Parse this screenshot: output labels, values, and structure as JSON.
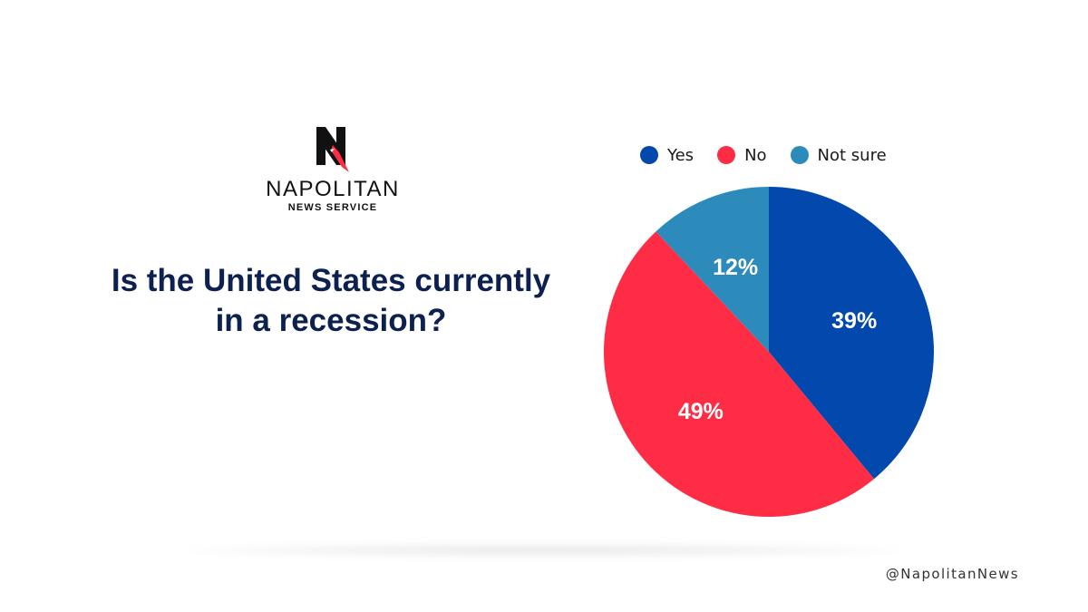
{
  "brand": {
    "name": "NAPOLITAN",
    "subtitle": "NEWS SERVICE",
    "logo_icon": "napolitan-n-logo-icon",
    "handle": "@NapolitanNews"
  },
  "colors": {
    "title": "#0d2150",
    "yes": "#0349ad",
    "no": "#fe2d45",
    "not_sure": "#2d8bbc"
  },
  "chart_data": {
    "type": "pie",
    "title": "Is the United States currently in a recession?",
    "legend_position": "top",
    "slices": [
      {
        "label": "Yes",
        "value": 39,
        "display": "39%",
        "color": "#0349ad"
      },
      {
        "label": "No",
        "value": 49,
        "display": "49%",
        "color": "#fe2d45"
      },
      {
        "label": "Not sure",
        "value": 12,
        "display": "12%",
        "color": "#2d8bbc"
      }
    ]
  }
}
